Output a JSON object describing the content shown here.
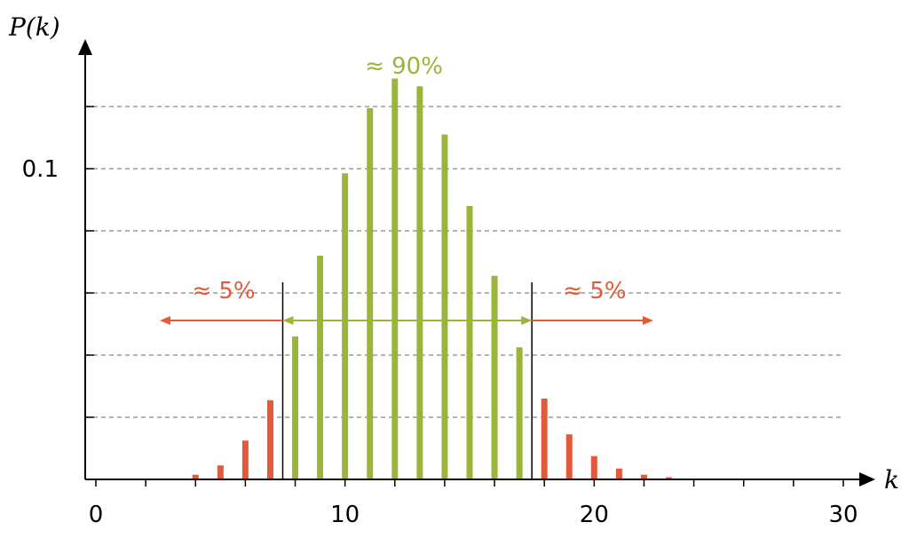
{
  "chart_data": {
    "type": "bar",
    "title": "",
    "xlabel": "k",
    "ylabel": "P(k)",
    "xlim": [
      0,
      30
    ],
    "ylim": [
      0,
      0.15
    ],
    "x_ticks": [
      0,
      10,
      20,
      30
    ],
    "y_tick_labels": [
      {
        "value": 0.1,
        "label": "0.1"
      }
    ],
    "grid": true,
    "bars": [
      {
        "k": 4,
        "p": 0.0015,
        "region": "tail"
      },
      {
        "k": 5,
        "p": 0.0045,
        "region": "tail"
      },
      {
        "k": 6,
        "p": 0.0125,
        "region": "tail"
      },
      {
        "k": 7,
        "p": 0.0255,
        "region": "tail"
      },
      {
        "k": 8,
        "p": 0.046,
        "region": "center"
      },
      {
        "k": 9,
        "p": 0.072,
        "region": "center"
      },
      {
        "k": 10,
        "p": 0.0985,
        "region": "center"
      },
      {
        "k": 11,
        "p": 0.1195,
        "region": "center"
      },
      {
        "k": 12,
        "p": 0.129,
        "region": "center"
      },
      {
        "k": 13,
        "p": 0.1265,
        "region": "center"
      },
      {
        "k": 14,
        "p": 0.111,
        "region": "center"
      },
      {
        "k": 15,
        "p": 0.088,
        "region": "center"
      },
      {
        "k": 16,
        "p": 0.0655,
        "region": "center"
      },
      {
        "k": 17,
        "p": 0.0425,
        "region": "center"
      },
      {
        "k": 18,
        "p": 0.026,
        "region": "tail"
      },
      {
        "k": 19,
        "p": 0.0145,
        "region": "tail"
      },
      {
        "k": 20,
        "p": 0.0075,
        "region": "tail"
      },
      {
        "k": 21,
        "p": 0.0035,
        "region": "tail"
      },
      {
        "k": 22,
        "p": 0.0015,
        "region": "tail"
      },
      {
        "k": 23,
        "p": 0.0007,
        "region": "tail"
      }
    ],
    "cutoffs": [
      7.5,
      17.5
    ],
    "annotations": {
      "center": "≈ 90%",
      "left": "≈ 5%",
      "right": "≈ 5%"
    },
    "colors": {
      "center": "#9bb53a",
      "tail": "#e35a3a",
      "grid": "#888888",
      "axis": "#000000"
    }
  }
}
